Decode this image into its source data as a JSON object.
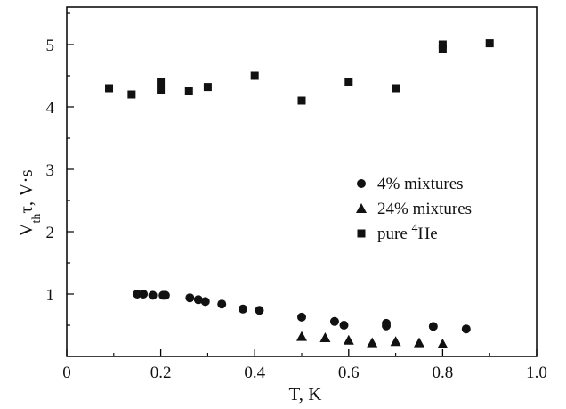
{
  "chart_data": {
    "type": "scatter",
    "xlabel": "T, K",
    "ylabel": {
      "main": "V",
      "sub": "th",
      "rest": "τ, V·s"
    },
    "xlim": [
      0,
      1.0
    ],
    "ylim": [
      0,
      5.6
    ],
    "x_ticks": [
      "0",
      "0.2",
      "0.4",
      "0.6",
      "0.8",
      "1.0"
    ],
    "y_ticks": [
      "1",
      "2",
      "3",
      "4",
      "5"
    ],
    "legend": {
      "placement": "right-middle",
      "entries": [
        {
          "marker": "circle",
          "label": "4% mixtures"
        },
        {
          "marker": "triangle",
          "label": "24% mixtures"
        },
        {
          "marker": "square",
          "label": "pure ",
          "sup": "4",
          "label_end": "He"
        }
      ]
    },
    "series": [
      {
        "marker": "circle",
        "points": [
          [
            0.15,
            1.0
          ],
          [
            0.163,
            1.0
          ],
          [
            0.183,
            0.98
          ],
          [
            0.205,
            0.98
          ],
          [
            0.21,
            0.98
          ],
          [
            0.262,
            0.94
          ],
          [
            0.28,
            0.91
          ],
          [
            0.295,
            0.88
          ],
          [
            0.33,
            0.84
          ],
          [
            0.375,
            0.76
          ],
          [
            0.41,
            0.74
          ],
          [
            0.5,
            0.63
          ],
          [
            0.57,
            0.56
          ],
          [
            0.59,
            0.5
          ],
          [
            0.68,
            0.53
          ],
          [
            0.68,
            0.49
          ],
          [
            0.78,
            0.48
          ],
          [
            0.85,
            0.44
          ]
        ]
      },
      {
        "marker": "triangle",
        "points": [
          [
            0.5,
            0.32
          ],
          [
            0.55,
            0.3
          ],
          [
            0.6,
            0.26
          ],
          [
            0.65,
            0.22
          ],
          [
            0.7,
            0.24
          ],
          [
            0.75,
            0.22
          ],
          [
            0.8,
            0.2
          ]
        ]
      },
      {
        "marker": "square",
        "points": [
          [
            0.09,
            4.3
          ],
          [
            0.138,
            4.2
          ],
          [
            0.2,
            4.4
          ],
          [
            0.2,
            4.27
          ],
          [
            0.26,
            4.25
          ],
          [
            0.3,
            4.32
          ],
          [
            0.4,
            4.5
          ],
          [
            0.5,
            4.1
          ],
          [
            0.6,
            4.4
          ],
          [
            0.7,
            4.3
          ],
          [
            0.8,
            5.0
          ],
          [
            0.8,
            4.93
          ],
          [
            0.9,
            5.02
          ]
        ]
      }
    ]
  }
}
